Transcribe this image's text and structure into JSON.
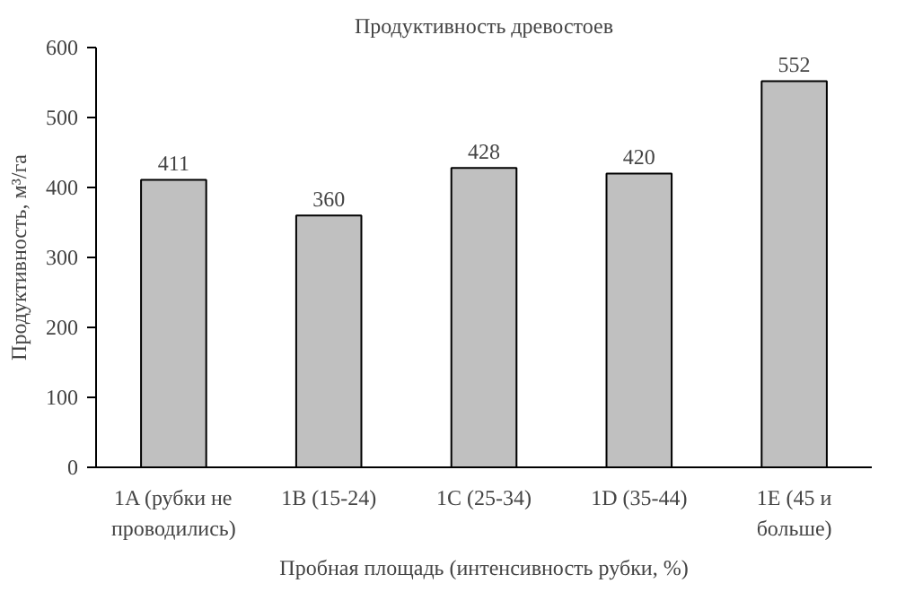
{
  "chart_data": {
    "type": "bar",
    "title": "Продуктивность древостоев",
    "categories": [
      "1A (рубки не проводились)",
      "1B (15-24)",
      "1C (25-34)",
      "1D (35-44)",
      "1E (45 и больше)"
    ],
    "values": [
      411,
      360,
      428,
      420,
      552
    ],
    "color": "#c0c0c0",
    "xlabel": "Пробная площадь (интенсивность рубки, %)",
    "ylabel": "Продуктивность, м³/га",
    "ylim": [
      0,
      600
    ],
    "yticks": [
      0,
      100,
      200,
      300,
      400,
      500,
      600
    ],
    "grid": false,
    "data_labels": true
  }
}
